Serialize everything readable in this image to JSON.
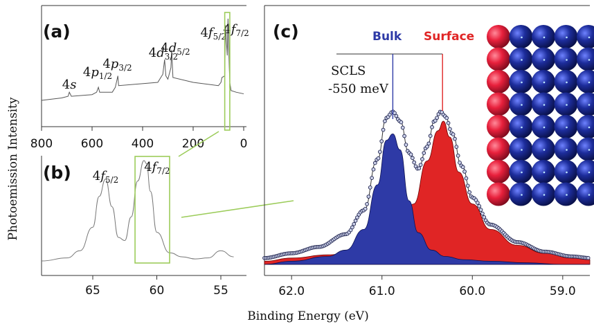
{
  "figure": {
    "ylabel": "Photoemission Intensity",
    "xlabel": "Binding Energy (eV)"
  },
  "chart_data": [
    {
      "panel": "(a)",
      "type": "line",
      "xlim": [
        800,
        0
      ],
      "x_ticks": [
        "800",
        "600",
        "400",
        "200",
        "0"
      ],
      "x_tick_values": [
        800,
        600,
        400,
        200,
        0
      ],
      "series": [
        {
          "values_description_free": true,
          "x": [
            800,
            720,
            695,
            690,
            682,
            600,
            582,
            575,
            570,
            520,
            508,
            498,
            495,
            340,
            320,
            313,
            308,
            300,
            288,
            285,
            280,
            200,
            100,
            90,
            86,
            75,
            72,
            65,
            62,
            57,
            55,
            50,
            30,
            0
          ],
          "y": [
            0.0,
            0.03,
            0.05,
            0.1,
            0.05,
            0.07,
            0.1,
            0.16,
            0.1,
            0.1,
            0.16,
            0.3,
            0.18,
            0.22,
            0.32,
            0.5,
            0.3,
            0.26,
            0.4,
            0.62,
            0.28,
            0.22,
            0.18,
            0.22,
            0.28,
            0.3,
            0.92,
            0.55,
            1.0,
            0.4,
            0.22,
            0.12,
            0.1,
            0.08
          ]
        }
      ],
      "annotations": [
        {
          "base": "4",
          "it": "s",
          "sub": "",
          "x": 690
        },
        {
          "base": "4",
          "it": "p",
          "sub": "1/2",
          "x": 578
        },
        {
          "base": "4",
          "it": "p",
          "sub": "3/2",
          "x": 500
        },
        {
          "base": "4",
          "it": "d",
          "sub": "3/2",
          "x": 318
        },
        {
          "base": "4",
          "it": "d",
          "sub": "5/2",
          "x": 270
        },
        {
          "base": "4",
          "it": "f",
          "sub": "5/2",
          "x": 120
        },
        {
          "base": "4",
          "it": "f",
          "sub": "7/2",
          "x": 30
        }
      ]
    },
    {
      "panel": "(b)",
      "type": "line",
      "xlim": [
        69,
        53
      ],
      "x_ticks": [
        "65",
        "60",
        "55"
      ],
      "x_tick_values": [
        65,
        60,
        55
      ],
      "series": [
        {
          "x": [
            69,
            67,
            66,
            65,
            64.5,
            64.0,
            63.5,
            63.0,
            62.5,
            62.0,
            61.5,
            61.0,
            60.8,
            60.5,
            60.0,
            59.0,
            58.0,
            57.0,
            56.0,
            55.0,
            54.0
          ],
          "y": [
            0.02,
            0.05,
            0.12,
            0.35,
            0.65,
            0.82,
            0.55,
            0.25,
            0.22,
            0.45,
            0.8,
            1.0,
            0.97,
            0.7,
            0.3,
            0.1,
            0.06,
            0.04,
            0.05,
            0.12,
            0.06
          ]
        }
      ],
      "annotations": [
        {
          "base": "4",
          "it": "f",
          "sub": "5/2",
          "x": 64.0
        },
        {
          "base": "4",
          "it": "f",
          "sub": "7/2",
          "x": 60.3
        }
      ]
    },
    {
      "panel": "(c)",
      "type": "area",
      "xlim": [
        62.3,
        58.7
      ],
      "x_ticks": [
        "62.0",
        "61.0",
        "60.0",
        "59.0"
      ],
      "x_tick_values": [
        62.0,
        61.0,
        60.0,
        59.0
      ],
      "series": [
        {
          "name": "Bulk",
          "color": "#2e3aa6",
          "x": [
            62.3,
            62.0,
            61.6,
            61.4,
            61.2,
            61.05,
            60.95,
            60.88,
            60.8,
            60.7,
            60.6,
            60.45,
            60.3,
            60.1,
            59.8,
            59.4,
            59.0,
            58.7
          ],
          "y": [
            0.0,
            0.02,
            0.05,
            0.09,
            0.22,
            0.5,
            0.78,
            0.82,
            0.72,
            0.4,
            0.2,
            0.09,
            0.05,
            0.03,
            0.02,
            0.01,
            0.0,
            0.0
          ]
        },
        {
          "name": "Surface",
          "color": "#e02525",
          "x": [
            62.3,
            62.0,
            61.6,
            61.2,
            61.0,
            60.8,
            60.65,
            60.5,
            60.38,
            60.32,
            60.25,
            60.15,
            60.0,
            59.8,
            59.5,
            59.2,
            58.9,
            58.7
          ],
          "y": [
            0.02,
            0.04,
            0.06,
            0.1,
            0.14,
            0.24,
            0.38,
            0.65,
            0.84,
            0.9,
            0.8,
            0.58,
            0.38,
            0.22,
            0.12,
            0.07,
            0.04,
            0.03
          ]
        },
        {
          "name": "data",
          "style": "markers",
          "x": [
            62.3,
            62.0,
            61.7,
            61.4,
            61.2,
            61.05,
            60.95,
            60.88,
            60.8,
            60.7,
            60.6,
            60.5,
            60.42,
            60.35,
            60.3,
            60.22,
            60.12,
            60.0,
            59.8,
            59.5,
            59.2,
            58.9,
            58.7
          ],
          "y": [
            0.04,
            0.07,
            0.11,
            0.19,
            0.34,
            0.66,
            0.92,
            0.96,
            0.9,
            0.7,
            0.6,
            0.74,
            0.9,
            0.96,
            0.93,
            0.82,
            0.62,
            0.42,
            0.25,
            0.14,
            0.08,
            0.05,
            0.04
          ]
        }
      ],
      "legend": [
        {
          "label": "Bulk",
          "color": "#2e3aa6"
        },
        {
          "label": "Surface",
          "color": "#e02525"
        }
      ],
      "scls": {
        "line1": "SCLS",
        "line2": "-550 meV"
      },
      "bulk_peak_x": 60.88,
      "surface_peak_x": 60.33
    }
  ],
  "inset": {
    "rows": 8,
    "cols": 5,
    "surface_color": "#e8203c",
    "bulk_color": "#1d2d9c"
  }
}
